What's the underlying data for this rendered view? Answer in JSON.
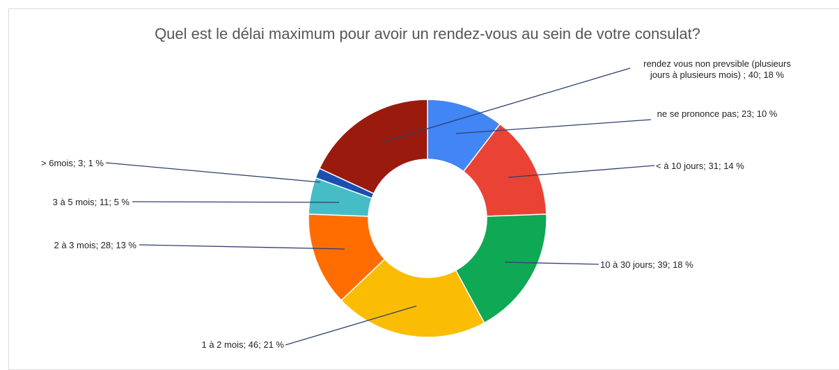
{
  "chart_data": {
    "type": "donut",
    "title": "Quel est le délai maximum pour avoir un rendez-vous au sein de votre consulat?",
    "values": [
      23,
      31,
      39,
      46,
      28,
      11,
      3,
      40
    ],
    "value_labels": [
      "ne se prononce pas; 23; 10 %",
      "< à 10 jours; 31; 14 %",
      "10 à 30 jours; 39; 18 %",
      "1 à 2 mois; 46; 21 %",
      "2 à 3 mois; 28; 13 %",
      "3 à 5 mois; 11; 5 %",
      "> 6mois; 3; 1 %",
      "rendez vous non prevsible (plusieurs jours à plusieurs mois) ; 40; 18 %"
    ],
    "colors": [
      "#4285f4",
      "#ea4335",
      "#0fa855",
      "#fbbc04",
      "#ff6d01",
      "#46bdc6",
      "#1a4fb3",
      "#9a1a0e"
    ]
  }
}
